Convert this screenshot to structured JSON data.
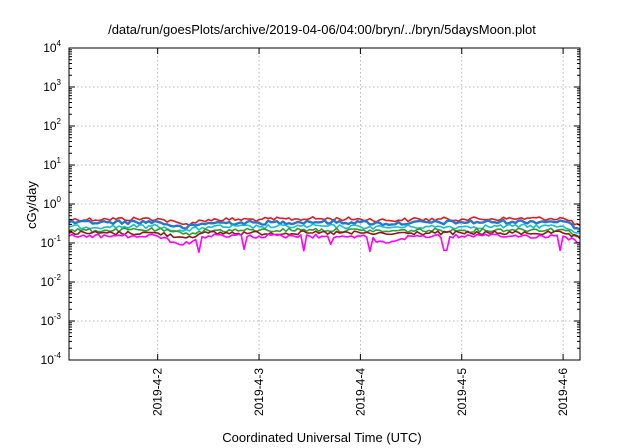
{
  "chart_data": {
    "type": "line",
    "title": "/data/run/goesPlots/archive/2019-04-06/04:00/bryn/../bryn/5daysMoon.plot",
    "xlabel": "Coordinated Universal Time (UTC)",
    "ylabel": "cGy/day",
    "y_scale": "log",
    "ylim": [
      0.0001,
      10000
    ],
    "y_ticks": [
      {
        "base": "10",
        "exp": "-4",
        "value": 0.0001
      },
      {
        "base": "10",
        "exp": "-3",
        "value": 0.001
      },
      {
        "base": "10",
        "exp": "-2",
        "value": 0.01
      },
      {
        "base": "10",
        "exp": "-1",
        "value": 0.1
      },
      {
        "base": "10",
        "exp": "0",
        "value": 1
      },
      {
        "base": "10",
        "exp": "1",
        "value": 10
      },
      {
        "base": "10",
        "exp": "2",
        "value": 100
      },
      {
        "base": "10",
        "exp": "3",
        "value": 1000
      },
      {
        "base": "10",
        "exp": "4",
        "value": 10000
      }
    ],
    "xlim": [
      "2019-04-01T03:00",
      "2019-04-06T04:00"
    ],
    "x_ticks": [
      "2019-4-2",
      "2019-4-3",
      "2019-4-4",
      "2019-4-5",
      "2019-4-6"
    ],
    "grid": true,
    "series": [
      {
        "color": "#e41a1c",
        "x": [
          "2019-04-01T03:00",
          "2019-04-01T12:00",
          "2019-04-02T00:00",
          "2019-04-02T06:00",
          "2019-04-02T12:00",
          "2019-04-03T00:00",
          "2019-04-03T12:00",
          "2019-04-04T00:00",
          "2019-04-04T06:00",
          "2019-04-04T12:00",
          "2019-04-05T00:00",
          "2019-04-05T12:00",
          "2019-04-06T00:00",
          "2019-04-06T04:00"
        ],
        "y": [
          0.4,
          0.41,
          0.42,
          0.3,
          0.4,
          0.4,
          0.42,
          0.41,
          0.38,
          0.4,
          0.41,
          0.42,
          0.43,
          0.28
        ]
      },
      {
        "color": "#1f78d4",
        "x": [
          "2019-04-01T03:00",
          "2019-04-01T12:00",
          "2019-04-02T00:00",
          "2019-04-02T06:00",
          "2019-04-02T12:00",
          "2019-04-03T00:00",
          "2019-04-03T12:00",
          "2019-04-04T00:00",
          "2019-04-04T06:00",
          "2019-04-04T12:00",
          "2019-04-05T00:00",
          "2019-04-05T12:00",
          "2019-04-06T00:00",
          "2019-04-06T04:00"
        ],
        "y": [
          0.33,
          0.34,
          0.35,
          0.24,
          0.33,
          0.33,
          0.35,
          0.34,
          0.31,
          0.33,
          0.34,
          0.35,
          0.36,
          0.22
        ]
      },
      {
        "color": "#17becf",
        "x": [
          "2019-04-01T03:00",
          "2019-04-01T12:00",
          "2019-04-02T00:00",
          "2019-04-02T06:00",
          "2019-04-02T12:00",
          "2019-04-03T00:00",
          "2019-04-03T12:00",
          "2019-04-04T00:00",
          "2019-04-04T06:00",
          "2019-04-04T12:00",
          "2019-04-05T00:00",
          "2019-04-05T12:00",
          "2019-04-06T00:00",
          "2019-04-06T04:00"
        ],
        "y": [
          0.26,
          0.26,
          0.27,
          0.2,
          0.26,
          0.26,
          0.27,
          0.26,
          0.25,
          0.26,
          0.26,
          0.27,
          0.27,
          0.18
        ]
      },
      {
        "color": "#2ca02c",
        "x": [
          "2019-04-01T03:00",
          "2019-04-01T12:00",
          "2019-04-02T00:00",
          "2019-04-02T06:00",
          "2019-04-02T12:00",
          "2019-04-03T00:00",
          "2019-04-03T12:00",
          "2019-04-04T00:00",
          "2019-04-04T06:00",
          "2019-04-04T12:00",
          "2019-04-05T00:00",
          "2019-04-05T12:00",
          "2019-04-06T00:00",
          "2019-04-06T04:00"
        ],
        "y": [
          0.21,
          0.21,
          0.22,
          0.17,
          0.21,
          0.21,
          0.22,
          0.21,
          0.2,
          0.21,
          0.21,
          0.22,
          0.22,
          0.15
        ]
      },
      {
        "color": "#8b1a1a",
        "x": [
          "2019-04-01T03:00",
          "2019-04-01T12:00",
          "2019-04-02T00:00",
          "2019-04-02T06:00",
          "2019-04-02T12:00",
          "2019-04-03T00:00",
          "2019-04-03T12:00",
          "2019-04-04T00:00",
          "2019-04-04T06:00",
          "2019-04-04T12:00",
          "2019-04-05T00:00",
          "2019-04-05T12:00",
          "2019-04-06T00:00",
          "2019-04-06T04:00"
        ],
        "y": [
          0.18,
          0.18,
          0.18,
          0.14,
          0.18,
          0.18,
          0.18,
          0.18,
          0.17,
          0.18,
          0.18,
          0.18,
          0.18,
          0.13
        ]
      },
      {
        "color": "#ff00ff",
        "x": [
          "2019-04-01T03:00",
          "2019-04-01T12:00",
          "2019-04-02T00:00",
          "2019-04-02T06:00",
          "2019-04-02T12:00",
          "2019-04-03T00:00",
          "2019-04-03T12:00",
          "2019-04-04T00:00",
          "2019-04-04T06:00",
          "2019-04-04T12:00",
          "2019-04-05T00:00",
          "2019-04-05T12:00",
          "2019-04-06T00:00",
          "2019-04-06T04:00"
        ],
        "y": [
          0.15,
          0.15,
          0.15,
          0.09,
          0.15,
          0.15,
          0.15,
          0.15,
          0.1,
          0.15,
          0.15,
          0.15,
          0.15,
          0.1
        ]
      }
    ]
  }
}
